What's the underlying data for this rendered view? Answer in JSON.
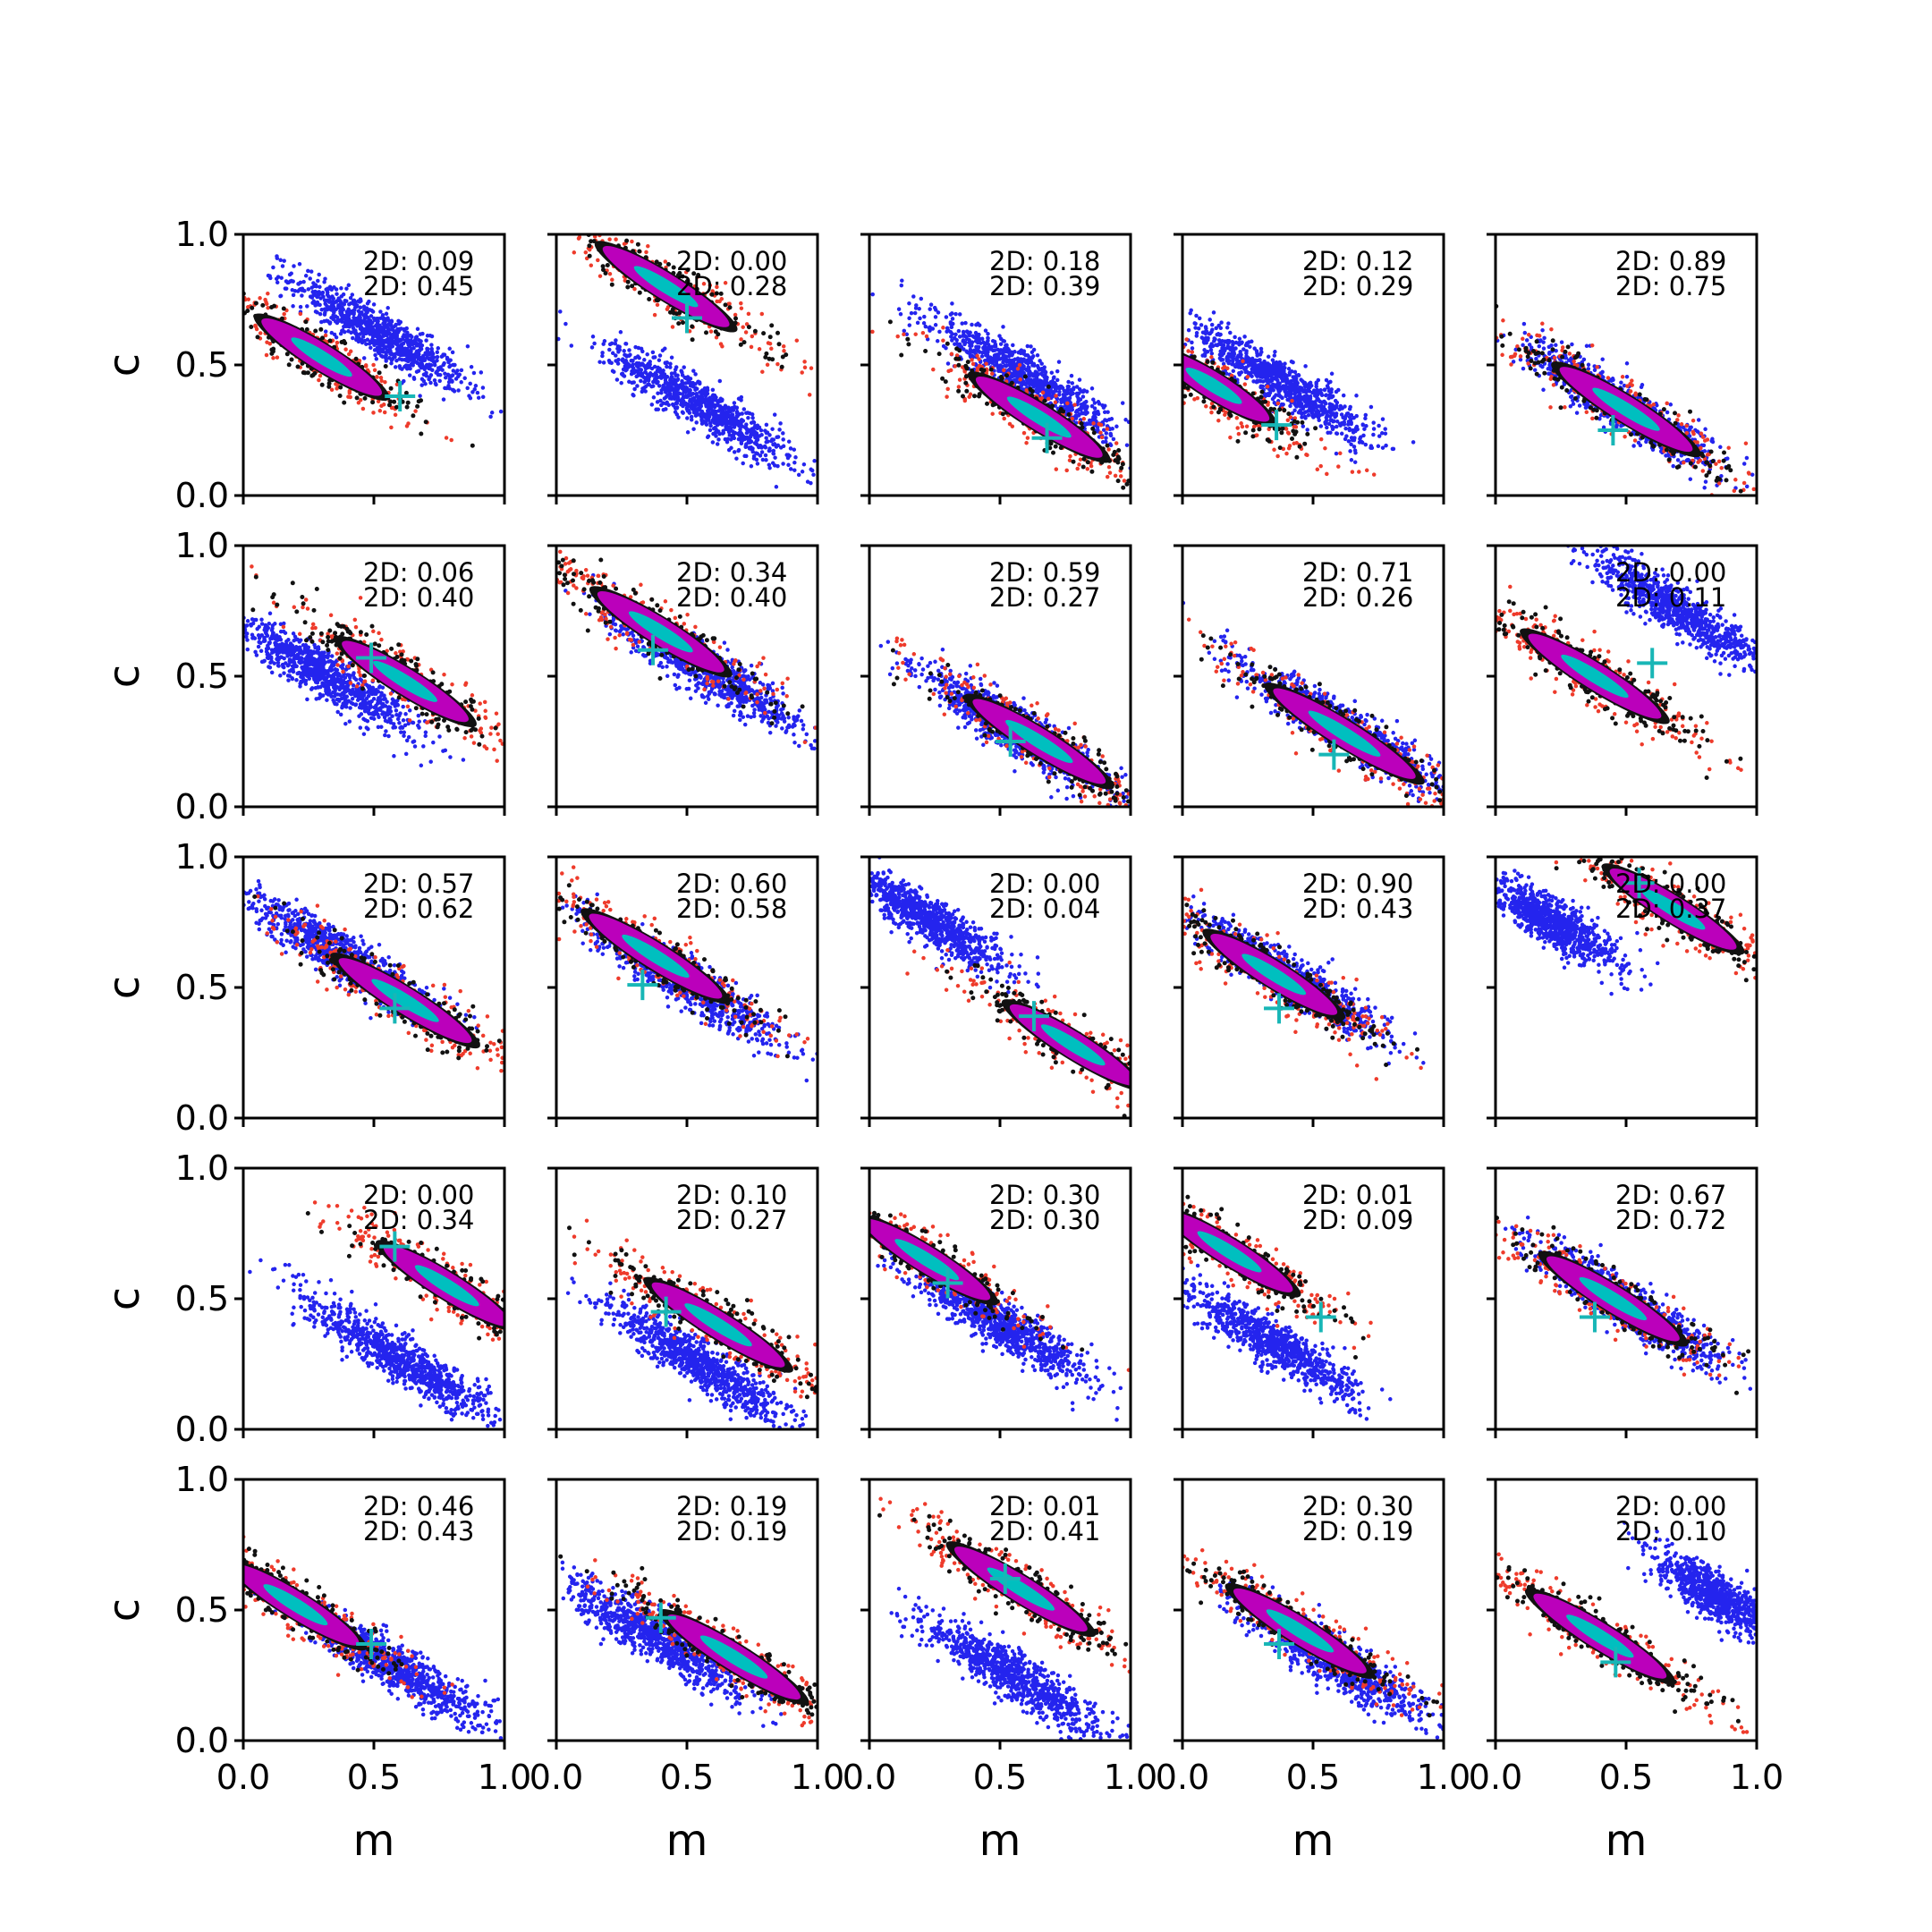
{
  "chart_data": {
    "type": "scatter",
    "layout": {
      "rows": 5,
      "cols": 5
    },
    "xlabel": "m",
    "ylabel": "c",
    "xlim": [
      0.0,
      1.0
    ],
    "ylim": [
      0.0,
      1.0
    ],
    "xticks": [
      "0.0",
      "0.5",
      "1.0"
    ],
    "yticks": [
      "0.0",
      "0.5",
      "1.0"
    ],
    "stat_prefix": "2D: ",
    "colors": {
      "blue": "#2424ee",
      "red": "#ee3b2b",
      "black": "#111111",
      "magenta": "#bb00bb",
      "cyan": "#00bfbf",
      "marker": "#18b6b6"
    },
    "panels": [
      {
        "stats": [
          "0.09",
          "0.45"
        ],
        "cluster": {
          "m": 0.3,
          "c": 0.53,
          "w": 0.38,
          "h": 0.07
        },
        "blue": {
          "m": 0.52,
          "c": 0.62,
          "w": 0.38,
          "h": 0.08
        },
        "true": {
          "m": 0.6,
          "c": 0.38
        }
      },
      {
        "stats": [
          "0.00",
          "0.28"
        ],
        "cluster": {
          "m": 0.42,
          "c": 0.8,
          "w": 0.4,
          "h": 0.07
        },
        "blue": {
          "m": 0.55,
          "c": 0.35,
          "w": 0.4,
          "h": 0.08
        },
        "true": {
          "m": 0.5,
          "c": 0.68
        }
      },
      {
        "stats": [
          "0.18",
          "0.39"
        ],
        "cluster": {
          "m": 0.65,
          "c": 0.3,
          "w": 0.4,
          "h": 0.07
        },
        "blue": {
          "m": 0.6,
          "c": 0.45,
          "w": 0.4,
          "h": 0.08
        },
        "true": {
          "m": 0.68,
          "c": 0.22
        }
      },
      {
        "stats": [
          "0.12",
          "0.29"
        ],
        "cluster": {
          "m": 0.12,
          "c": 0.42,
          "w": 0.35,
          "h": 0.07
        },
        "blue": {
          "m": 0.38,
          "c": 0.43,
          "w": 0.4,
          "h": 0.08
        },
        "true": {
          "m": 0.36,
          "c": 0.27
        }
      },
      {
        "stats": [
          "0.89",
          "0.75"
        ],
        "cluster": {
          "m": 0.5,
          "c": 0.33,
          "w": 0.42,
          "h": 0.07
        },
        "blue": {
          "m": 0.5,
          "c": 0.33,
          "w": 0.42,
          "h": 0.08
        },
        "true": {
          "m": 0.45,
          "c": 0.25
        }
      },
      {
        "stats": [
          "0.06",
          "0.40"
        ],
        "cluster": {
          "m": 0.62,
          "c": 0.48,
          "w": 0.4,
          "h": 0.07
        },
        "blue": {
          "m": 0.32,
          "c": 0.5,
          "w": 0.4,
          "h": 0.08
        },
        "true": {
          "m": 0.49,
          "c": 0.57
        }
      },
      {
        "stats": [
          "0.34",
          "0.40"
        ],
        "cluster": {
          "m": 0.4,
          "c": 0.67,
          "w": 0.4,
          "h": 0.07
        },
        "blue": {
          "m": 0.58,
          "c": 0.52,
          "w": 0.4,
          "h": 0.08
        },
        "true": {
          "m": 0.37,
          "c": 0.6
        }
      },
      {
        "stats": [
          "0.59",
          "0.27"
        ],
        "cluster": {
          "m": 0.65,
          "c": 0.25,
          "w": 0.42,
          "h": 0.07
        },
        "blue": {
          "m": 0.55,
          "c": 0.3,
          "w": 0.4,
          "h": 0.08
        },
        "true": {
          "m": 0.54,
          "c": 0.25
        }
      },
      {
        "stats": [
          "0.71",
          "0.26"
        ],
        "cluster": {
          "m": 0.62,
          "c": 0.28,
          "w": 0.45,
          "h": 0.07
        },
        "blue": {
          "m": 0.62,
          "c": 0.3,
          "w": 0.45,
          "h": 0.08
        },
        "true": {
          "m": 0.58,
          "c": 0.2
        }
      },
      {
        "stats": [
          "0.00",
          "0.11"
        ],
        "cluster": {
          "m": 0.38,
          "c": 0.5,
          "w": 0.42,
          "h": 0.07
        },
        "blue": {
          "m": 0.7,
          "c": 0.75,
          "w": 0.4,
          "h": 0.08
        },
        "true": {
          "m": 0.6,
          "c": 0.55
        }
      },
      {
        "stats": [
          "0.57",
          "0.62"
        ],
        "cluster": {
          "m": 0.62,
          "c": 0.45,
          "w": 0.42,
          "h": 0.07
        },
        "blue": {
          "m": 0.38,
          "c": 0.62,
          "w": 0.42,
          "h": 0.08
        },
        "true": {
          "m": 0.58,
          "c": 0.42
        }
      },
      {
        "stats": [
          "0.60",
          "0.58"
        ],
        "cluster": {
          "m": 0.38,
          "c": 0.62,
          "w": 0.42,
          "h": 0.07
        },
        "blue": {
          "m": 0.48,
          "c": 0.53,
          "w": 0.42,
          "h": 0.08
        },
        "true": {
          "m": 0.33,
          "c": 0.51
        }
      },
      {
        "stats": [
          "0.00",
          "0.04"
        ],
        "cluster": {
          "m": 0.78,
          "c": 0.28,
          "w": 0.4,
          "h": 0.07
        },
        "blue": {
          "m": 0.22,
          "c": 0.76,
          "w": 0.35,
          "h": 0.08
        },
        "true": {
          "m": 0.63,
          "c": 0.39
        }
      },
      {
        "stats": [
          "0.90",
          "0.43"
        ],
        "cluster": {
          "m": 0.35,
          "c": 0.55,
          "w": 0.4,
          "h": 0.07
        },
        "blue": {
          "m": 0.4,
          "c": 0.54,
          "w": 0.4,
          "h": 0.08
        },
        "true": {
          "m": 0.37,
          "c": 0.42
        }
      },
      {
        "stats": [
          "0.00",
          "0.37"
        ],
        "cluster": {
          "m": 0.68,
          "c": 0.8,
          "w": 0.4,
          "h": 0.07
        },
        "blue": {
          "m": 0.22,
          "c": 0.75,
          "w": 0.3,
          "h": 0.08
        },
        "true": {
          "m": 0.55,
          "c": 0.9
        }
      },
      {
        "stats": [
          "0.00",
          "0.34"
        ],
        "cluster": {
          "m": 0.78,
          "c": 0.55,
          "w": 0.4,
          "h": 0.07
        },
        "blue": {
          "m": 0.6,
          "c": 0.27,
          "w": 0.42,
          "h": 0.08
        },
        "true": {
          "m": 0.58,
          "c": 0.7
        }
      },
      {
        "stats": [
          "0.10",
          "0.27"
        ],
        "cluster": {
          "m": 0.62,
          "c": 0.4,
          "w": 0.42,
          "h": 0.07
        },
        "blue": {
          "m": 0.55,
          "c": 0.25,
          "w": 0.4,
          "h": 0.08
        },
        "true": {
          "m": 0.42,
          "c": 0.45
        }
      },
      {
        "stats": [
          "0.30",
          "0.30"
        ],
        "cluster": {
          "m": 0.22,
          "c": 0.65,
          "w": 0.4,
          "h": 0.07
        },
        "blue": {
          "m": 0.5,
          "c": 0.4,
          "w": 0.4,
          "h": 0.08
        },
        "true": {
          "m": 0.3,
          "c": 0.56
        }
      },
      {
        "stats": [
          "0.01",
          "0.09"
        ],
        "cluster": {
          "m": 0.18,
          "c": 0.68,
          "w": 0.4,
          "h": 0.07
        },
        "blue": {
          "m": 0.35,
          "c": 0.33,
          "w": 0.4,
          "h": 0.08
        },
        "true": {
          "m": 0.53,
          "c": 0.43
        }
      },
      {
        "stats": [
          "0.67",
          "0.72"
        ],
        "cluster": {
          "m": 0.45,
          "c": 0.5,
          "w": 0.42,
          "h": 0.07
        },
        "blue": {
          "m": 0.52,
          "c": 0.47,
          "w": 0.42,
          "h": 0.08
        },
        "true": {
          "m": 0.38,
          "c": 0.43
        }
      },
      {
        "stats": [
          "0.46",
          "0.43"
        ],
        "cluster": {
          "m": 0.2,
          "c": 0.52,
          "w": 0.4,
          "h": 0.07
        },
        "blue": {
          "m": 0.58,
          "c": 0.28,
          "w": 0.42,
          "h": 0.08
        },
        "true": {
          "m": 0.49,
          "c": 0.37
        }
      },
      {
        "stats": [
          "0.19",
          "0.19"
        ],
        "cluster": {
          "m": 0.68,
          "c": 0.32,
          "w": 0.42,
          "h": 0.07
        },
        "blue": {
          "m": 0.38,
          "c": 0.4,
          "w": 0.4,
          "h": 0.08
        },
        "true": {
          "m": 0.4,
          "c": 0.47
        }
      },
      {
        "stats": [
          "0.01",
          "0.41"
        ],
        "cluster": {
          "m": 0.58,
          "c": 0.58,
          "w": 0.42,
          "h": 0.07
        },
        "blue": {
          "m": 0.55,
          "c": 0.25,
          "w": 0.4,
          "h": 0.08
        },
        "true": {
          "m": 0.52,
          "c": 0.62
        }
      },
      {
        "stats": [
          "0.30",
          "0.19"
        ],
        "cluster": {
          "m": 0.45,
          "c": 0.42,
          "w": 0.42,
          "h": 0.07
        },
        "blue": {
          "m": 0.58,
          "c": 0.3,
          "w": 0.42,
          "h": 0.08
        },
        "true": {
          "m": 0.37,
          "c": 0.37
        }
      },
      {
        "stats": [
          "0.00",
          "0.10"
        ],
        "cluster": {
          "m": 0.4,
          "c": 0.4,
          "w": 0.42,
          "h": 0.07
        },
        "blue": {
          "m": 0.85,
          "c": 0.55,
          "w": 0.3,
          "h": 0.08
        },
        "true": {
          "m": 0.46,
          "c": 0.3
        }
      }
    ]
  }
}
